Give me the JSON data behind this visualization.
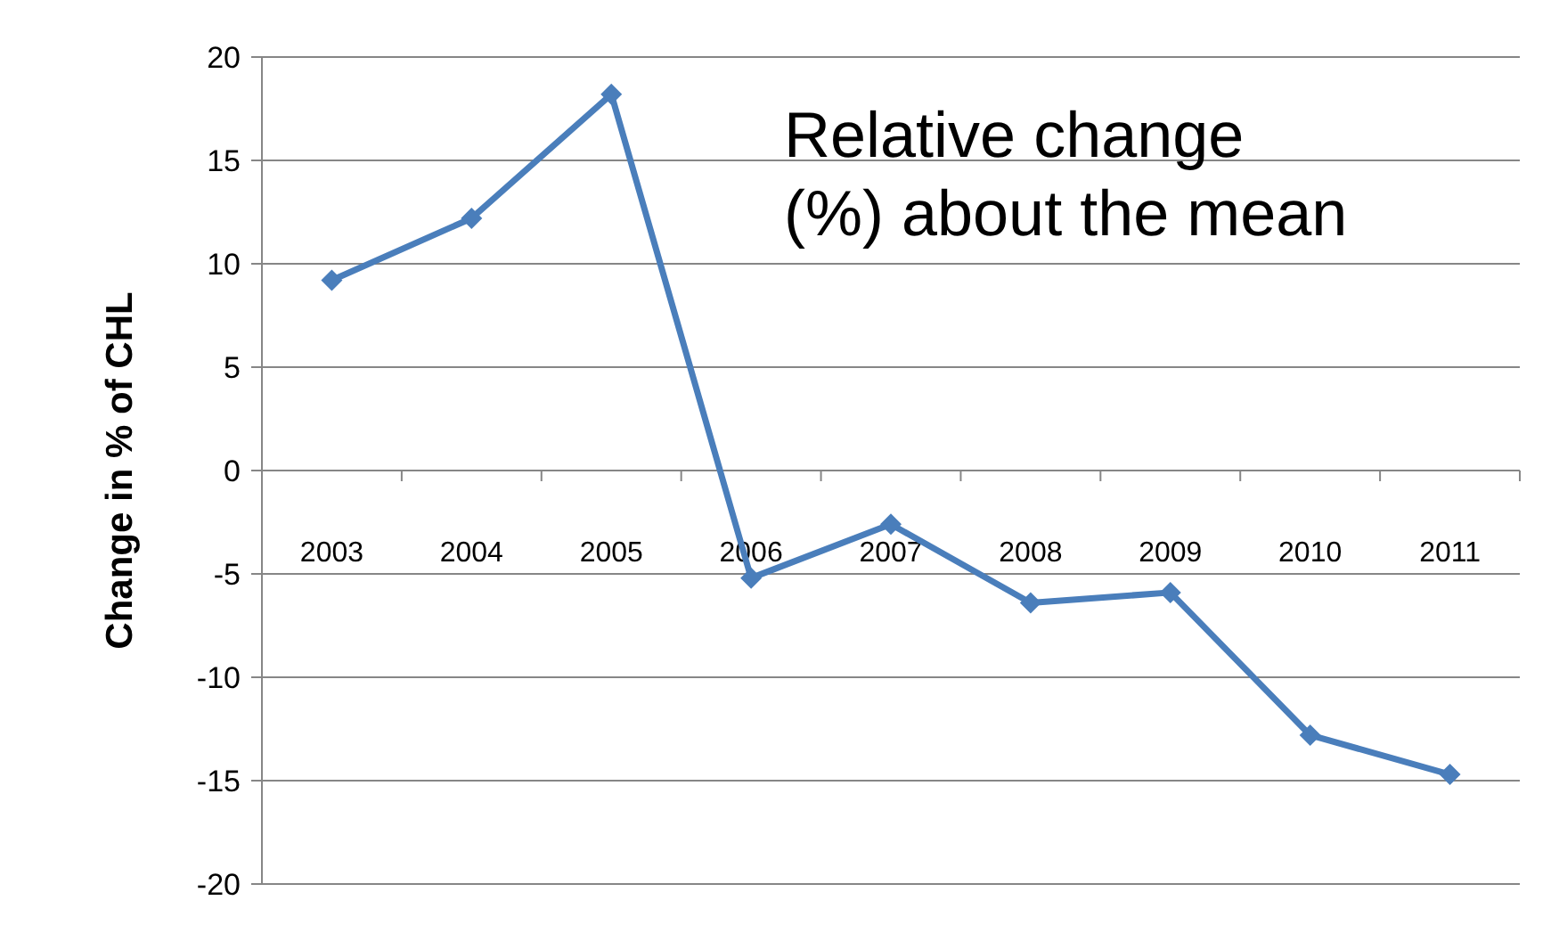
{
  "chart_data": {
    "type": "line",
    "ylabel": "Change in % of CHL",
    "categories": [
      "2003",
      "2004",
      "2005",
      "2006",
      "2007",
      "2008",
      "2009",
      "2010",
      "2011"
    ],
    "series": [
      {
        "color": "#4a7ebb",
        "values": [
          9.2,
          12.2,
          18.2,
          -5.2,
          -2.6,
          -6.4,
          -5.9,
          -12.8,
          -14.7
        ]
      }
    ],
    "ylim": [
      -20,
      20
    ],
    "yticks": [
      -20,
      -15,
      -10,
      -5,
      0,
      5,
      10,
      15,
      20
    ],
    "grid": "y",
    "marker": "diamond",
    "line_style": "solid",
    "annotations": [
      "Relative change (%) about the mean"
    ]
  }
}
